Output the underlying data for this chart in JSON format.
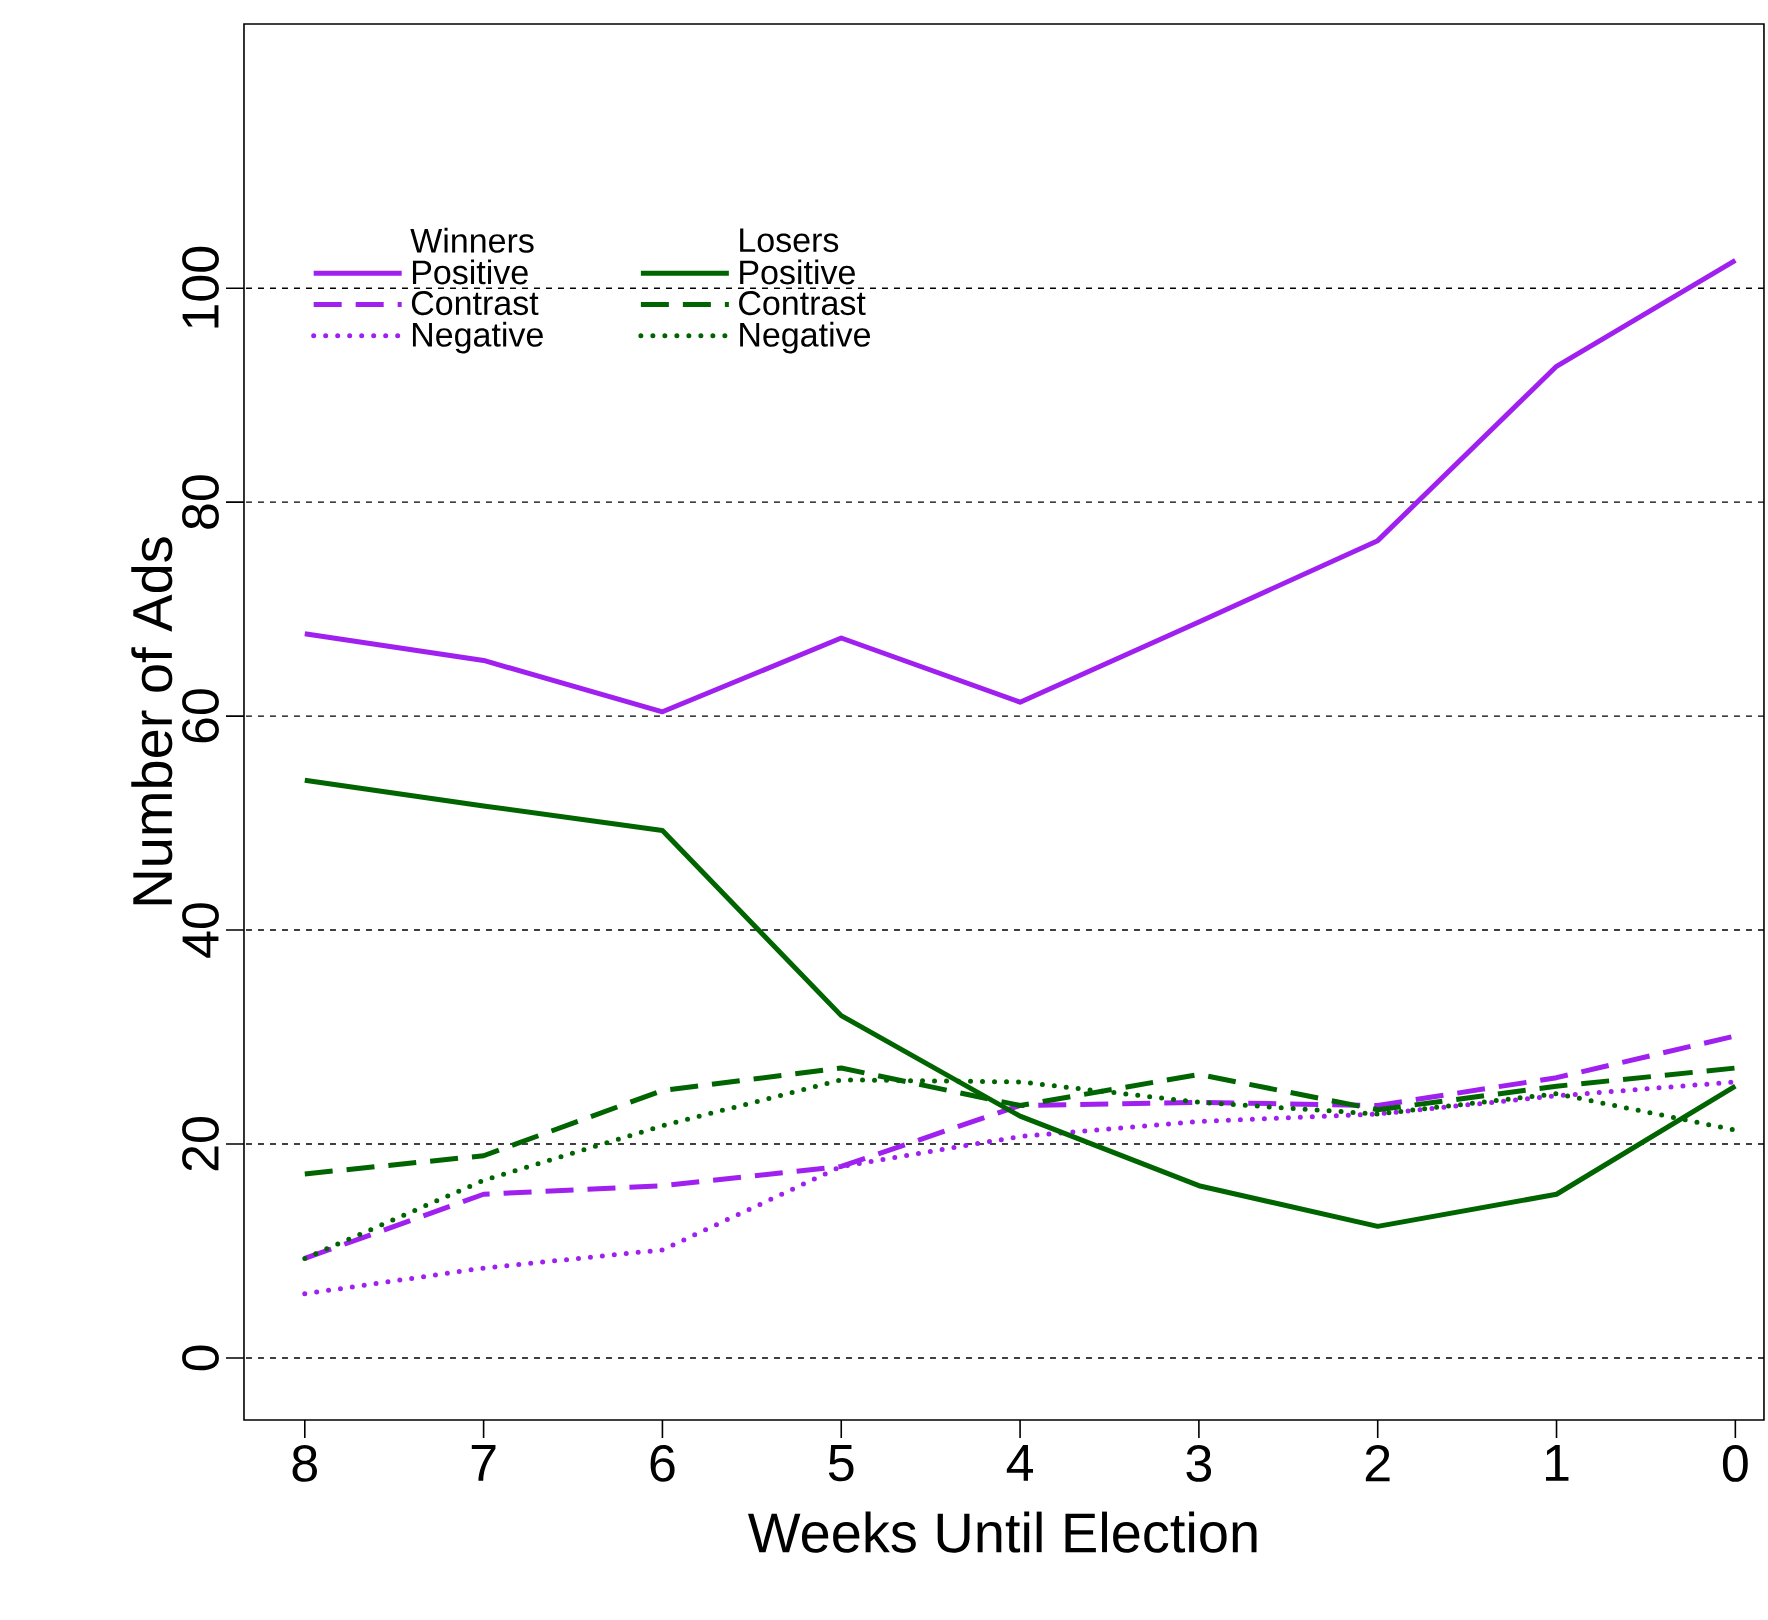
{
  "chart_data": {
    "type": "line",
    "xlabel": "Weeks Until Election",
    "ylabel": "Number of Ads",
    "x": [
      8,
      7,
      6,
      5,
      4,
      3,
      2,
      1,
      0
    ],
    "xlim": [
      8.34,
      -0.16
    ],
    "xticks": [
      8,
      7,
      6,
      5,
      4,
      3,
      2,
      1,
      0
    ],
    "ylim": [
      -5.8,
      124.7
    ],
    "yticks": [
      0,
      20,
      40,
      60,
      80,
      100
    ],
    "grid": "y",
    "legend": "top left",
    "marker": "none",
    "annotations": [
      "Winners",
      "Losers"
    ],
    "series": [
      {
        "name": "Positive",
        "color": "#a020f0",
        "line_style": "solid",
        "values": [
          67.7,
          65.2,
          60.4,
          67.3,
          61.3,
          68.8,
          76.4,
          92.7,
          102.6
        ]
      },
      {
        "name": "Contrast",
        "color": "#a020f0",
        "line_style": "dashed",
        "values": [
          9.3,
          15.3,
          16.1,
          17.9,
          23.6,
          23.9,
          23.6,
          26.2,
          30.1
        ]
      },
      {
        "name": "Negative",
        "color": "#a020f0",
        "line_style": "dotted",
        "values": [
          6.0,
          8.4,
          10.1,
          17.9,
          20.7,
          22.1,
          22.8,
          24.5,
          25.8
        ]
      },
      {
        "name": "Positive",
        "color": "#006400",
        "line_style": "solid",
        "values": [
          54.0,
          51.6,
          49.3,
          32.0,
          22.6,
          16.1,
          12.3,
          15.3,
          25.4
        ]
      },
      {
        "name": "Contrast",
        "color": "#006400",
        "line_style": "dashed",
        "values": [
          17.2,
          18.9,
          25.0,
          27.1,
          23.6,
          26.5,
          23.2,
          25.4,
          27.1
        ]
      },
      {
        "name": "Negative",
        "color": "#006400",
        "line_style": "dotted",
        "values": [
          9.3,
          16.6,
          21.7,
          26.0,
          25.8,
          23.9,
          22.8,
          24.7,
          21.3
        ]
      }
    ]
  }
}
